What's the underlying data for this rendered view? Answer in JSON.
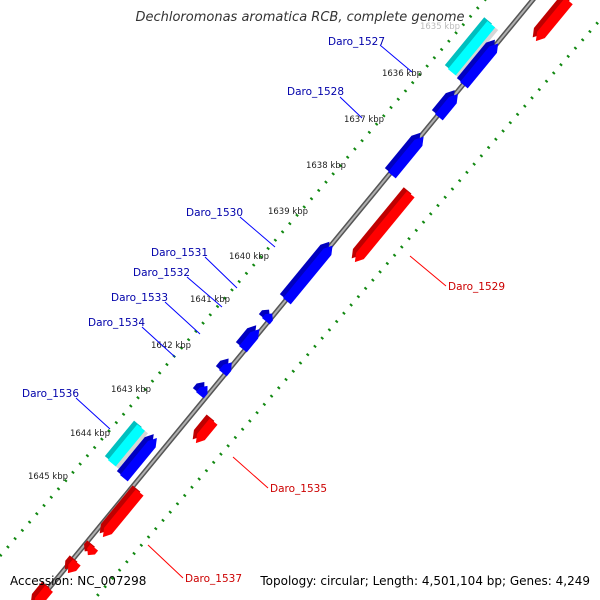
{
  "title": "Dechloromonas aromatica RCB, complete genome",
  "footer": {
    "accession": "Accession: NC_007298",
    "summary": "Topology: circular; Length: 4,501,104 bp; Genes: 4,249"
  },
  "colors": {
    "forward_gene": "#0000ff",
    "reverse_gene": "#ff0000",
    "highlight": "#00ffff",
    "backbone": "#8a8a8a",
    "dotted_ring": "#118811",
    "forward_label": "#0000aa",
    "reverse_label": "#cc0000",
    "tick_label": "#222222"
  },
  "ticks": [
    "1635 kbp",
    "1636 kbp",
    "1637 kbp",
    "1638 kbp",
    "1639 kbp",
    "1640 kbp",
    "1641 kbp",
    "1642 kbp",
    "1643 kbp",
    "1644 kbp",
    "1645 kbp"
  ],
  "gene_labels": [
    {
      "text": "Daro_1527",
      "strand": "forward"
    },
    {
      "text": "Daro_1528",
      "strand": "forward"
    },
    {
      "text": "Daro_1530",
      "strand": "forward"
    },
    {
      "text": "Daro_1531",
      "strand": "forward"
    },
    {
      "text": "Daro_1532",
      "strand": "forward"
    },
    {
      "text": "Daro_1533",
      "strand": "forward"
    },
    {
      "text": "Daro_1534",
      "strand": "forward"
    },
    {
      "text": "Daro_1536",
      "strand": "forward"
    },
    {
      "text": "Daro_1529",
      "strand": "reverse"
    },
    {
      "text": "Daro_1535",
      "strand": "reverse"
    },
    {
      "text": "Daro_1537",
      "strand": "reverse"
    }
  ]
}
